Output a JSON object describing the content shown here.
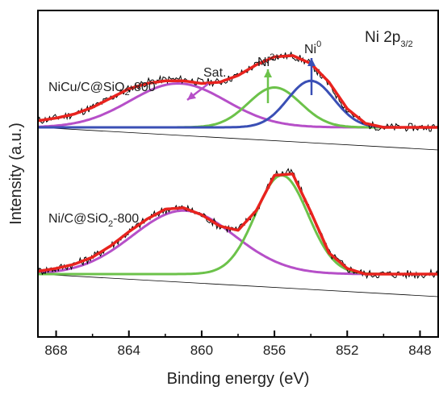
{
  "chart_data": {
    "type": "line",
    "title": "",
    "xlabel": "Binding energy (eV)",
    "ylabel": "Intensity (a.u.)",
    "xlim": [
      869,
      847
    ],
    "x_reversed": true,
    "xticks": [
      868,
      864,
      860,
      856,
      852,
      848
    ],
    "yticks": [],
    "grid": false,
    "legend": "none",
    "panel_label": {
      "main": "Ni 2p",
      "sub": "3/2"
    },
    "sample_labels": [
      {
        "pre": "NiCu/C@SiO",
        "sub": "2",
        "post": "-800"
      },
      {
        "pre": "Ni/C@SiO",
        "sub": "2",
        "post": "-800"
      }
    ],
    "peak_labels": [
      {
        "main": "Sat.",
        "sup": "",
        "x": 861.6,
        "color": "#b64fc8"
      },
      {
        "main": "Ni",
        "sup": "2+",
        "x": 856.0,
        "color": "#6cc24a"
      },
      {
        "main": "Ni",
        "sup": "0",
        "x": 854.0,
        "color": "#3a4fb5"
      }
    ],
    "spectra": [
      {
        "sample": "NiCu/C@SiO2-800",
        "x": [
          869,
          868,
          867,
          866,
          865,
          864,
          863,
          862,
          861,
          860,
          859,
          858,
          857,
          856,
          855,
          854,
          853,
          852,
          851,
          850,
          849,
          848,
          847
        ],
        "raw": [
          0.05,
          0.07,
          0.1,
          0.15,
          0.22,
          0.29,
          0.34,
          0.36,
          0.36,
          0.34,
          0.34,
          0.39,
          0.47,
          0.53,
          0.54,
          0.48,
          0.32,
          0.13,
          0.02,
          0.0,
          0.0,
          0.0,
          0.0
        ],
        "envelope": [
          0.05,
          0.07,
          0.1,
          0.15,
          0.22,
          0.29,
          0.33,
          0.35,
          0.35,
          0.33,
          0.34,
          0.39,
          0.47,
          0.53,
          0.54,
          0.48,
          0.34,
          0.14,
          0.03,
          0.0,
          0.0,
          0.0,
          0.0
        ],
        "peaks": [
          {
            "name": "Sat.",
            "center": 861.3,
            "fwhm": 6.2,
            "height": 0.33,
            "color": "#b64fc8"
          },
          {
            "name": "Ni2+",
            "center": 856.0,
            "fwhm": 3.4,
            "height": 0.3,
            "color": "#6cc24a"
          },
          {
            "name": "Ni0",
            "center": 854.0,
            "fwhm": 3.0,
            "height": 0.35,
            "color": "#3a4fb5"
          }
        ]
      },
      {
        "sample": "Ni/C@SiO2-800",
        "x": [
          869,
          868,
          867,
          866,
          865,
          864,
          863,
          862,
          861,
          860,
          859,
          858,
          857,
          856,
          855,
          854,
          853,
          852,
          851,
          850,
          849,
          848,
          847
        ],
        "raw": [
          0.02,
          0.04,
          0.07,
          0.12,
          0.2,
          0.3,
          0.39,
          0.46,
          0.47,
          0.42,
          0.34,
          0.31,
          0.45,
          0.71,
          0.72,
          0.44,
          0.15,
          0.04,
          0.0,
          0.0,
          0.0,
          0.0,
          0.0
        ],
        "envelope": [
          0.02,
          0.04,
          0.07,
          0.12,
          0.2,
          0.3,
          0.39,
          0.46,
          0.47,
          0.42,
          0.34,
          0.31,
          0.45,
          0.7,
          0.71,
          0.44,
          0.15,
          0.04,
          0.0,
          0.0,
          0.0,
          0.0,
          0.0
        ],
        "peaks": [
          {
            "name": "Sat.",
            "center": 861.0,
            "fwhm": 6.6,
            "height": 0.45,
            "color": "#b64fc8"
          },
          {
            "name": "Ni2+",
            "center": 855.6,
            "fwhm": 3.4,
            "height": 0.7,
            "color": "#6cc24a"
          }
        ]
      }
    ]
  }
}
